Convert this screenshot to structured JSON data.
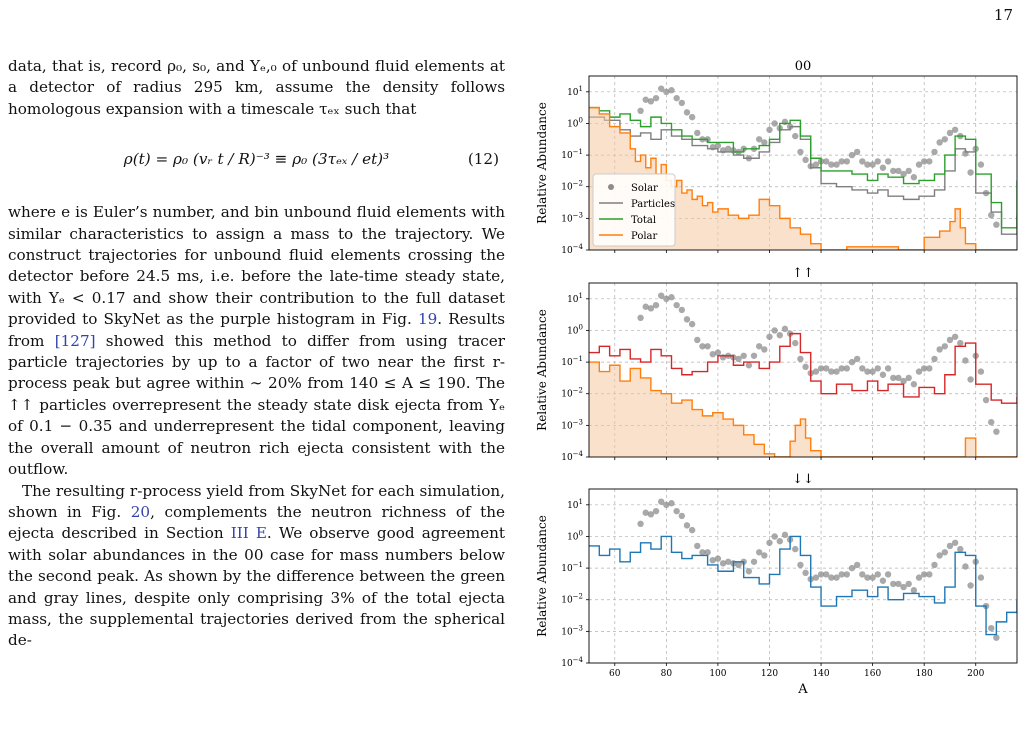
{
  "page": {
    "number": "17"
  },
  "text": {
    "p1_a": "data, that is, record ρ₀, s₀, and Yₑ,₀ of unbound fluid elements at a detector of radius 295 km, assume the density follows homologous expansion with a timescale τₑₓ such that",
    "equation": "ρ(t) = ρ₀ (vᵣ t / R)⁻³ ≡ ρ₀ (3τₑₓ / et)³",
    "equation_number": "(12)",
    "p1_b": "where e is Euler’s number, and bin unbound fluid elements with similar characteristics to assign a mass to the trajectory. We construct trajectories for unbound fluid elements crossing the detector before 24.5 ms, i.e. before the late-time steady state, with Yₑ < 0.17 and show their contribution to the full dataset provided to SkyNet as the purple histogram in Fig.",
    "ref_fig19": "19",
    "p1_c": ". Results from",
    "ref_127": "[127]",
    "p1_d": "showed this method to differ from using tracer particle trajectories by up to a factor of two near the first r-process peak but agree within ∼ 20% from 140 ≤ A ≤ 190. The ↑↑ particles overrepresent the steady state disk ejecta from Yₑ of 0.1 − 0.35 and underrepresent the tidal component, leaving the overall amount of neutron rich ejecta consistent with the outflow.",
    "p2_a": "The resulting r-process yield from SkyNet for each simulation, shown in Fig.",
    "ref_fig20": "20",
    "p2_b": ", complements the neutron richness of the ejecta described in Section",
    "ref_sec": "III E",
    "p2_c": ". We observe good agreement with solar abundances in the 00 case for mass numbers below the second peak. As shown by the difference between the green and gray lines, despite only comprising 3% of the total ejecta mass, the supplemental trajectories derived from the spherical de-"
  },
  "chart_data": [
    {
      "type": "line",
      "title": "00",
      "xlabel": "",
      "ylabel": "Relative Abundance",
      "xlim": [
        50,
        216
      ],
      "ylim_log10": [
        -4,
        1.5
      ],
      "yscale": "log",
      "grid": true,
      "legend_position": "center-left",
      "legend": [
        "Solar",
        "Particles",
        "Total",
        "Polar"
      ],
      "series": [
        {
          "name": "Solar",
          "style": "scatter",
          "color": "#999999",
          "x": [
            70,
            72,
            74,
            76,
            78,
            80,
            82,
            84,
            86,
            88,
            90,
            92,
            94,
            96,
            98,
            100,
            102,
            104,
            106,
            108,
            110,
            112,
            114,
            116,
            118,
            120,
            122,
            124,
            126,
            128,
            130,
            132,
            134,
            136,
            138,
            140,
            142,
            144,
            146,
            148,
            150,
            152,
            154,
            156,
            158,
            160,
            162,
            164,
            166,
            168,
            170,
            172,
            174,
            176,
            178,
            180,
            182,
            184,
            186,
            188,
            190,
            192,
            194,
            196,
            198,
            200,
            202,
            204,
            206,
            208
          ],
          "log10_y": [
            0.4,
            0.75,
            0.7,
            0.8,
            1.1,
            1.0,
            1.05,
            0.8,
            0.65,
            0.35,
            0.2,
            -0.3,
            -0.5,
            -0.5,
            -0.75,
            -0.7,
            -0.85,
            -0.8,
            -0.85,
            -0.9,
            -0.8,
            -1.1,
            -0.8,
            -0.5,
            -0.6,
            -0.2,
            0.0,
            -0.15,
            0.05,
            -0.1,
            -0.4,
            -0.9,
            -1.15,
            -1.35,
            -1.3,
            -1.2,
            -1.2,
            -1.3,
            -1.3,
            -1.2,
            -1.2,
            -1.0,
            -0.9,
            -1.2,
            -1.3,
            -1.3,
            -1.2,
            -1.4,
            -1.2,
            -1.5,
            -1.5,
            -1.6,
            -1.5,
            -1.7,
            -1.3,
            -1.2,
            -1.2,
            -0.9,
            -0.6,
            -0.5,
            -0.3,
            -0.2,
            -0.4,
            -0.95,
            -1.55,
            -0.8,
            -1.3,
            -2.2,
            -2.9,
            -3.2
          ]
        },
        {
          "name": "Particles",
          "color": "#7f7f7f",
          "x": [
            50,
            56,
            62,
            66,
            70,
            74,
            78,
            82,
            86,
            90,
            96,
            100,
            106,
            110,
            116,
            120,
            124,
            128,
            132,
            136,
            140,
            146,
            152,
            158,
            162,
            166,
            172,
            178,
            184,
            188,
            192,
            196,
            200,
            206,
            210,
            216
          ],
          "log10_y": [
            0.2,
            0.1,
            -0.2,
            -0.4,
            -0.3,
            -0.5,
            -0.2,
            -0.4,
            -0.5,
            -0.7,
            -0.8,
            -0.9,
            -1.0,
            -1.1,
            -0.9,
            -0.6,
            -0.2,
            -0.1,
            -0.5,
            -1.4,
            -1.9,
            -2.0,
            -2.1,
            -2.2,
            -2.1,
            -2.3,
            -2.4,
            -2.3,
            -2.1,
            -1.5,
            -0.8,
            -0.9,
            -2.2,
            -2.8,
            -3.5,
            -2.9
          ]
        },
        {
          "name": "Total",
          "color": "#2ca02c",
          "x": [
            50,
            54,
            58,
            62,
            66,
            70,
            74,
            78,
            82,
            86,
            90,
            96,
            100,
            106,
            110,
            116,
            120,
            124,
            128,
            132,
            136,
            140,
            146,
            152,
            158,
            162,
            166,
            172,
            178,
            184,
            188,
            192,
            196,
            200,
            206,
            210,
            216
          ],
          "log10_y": [
            0.5,
            0.4,
            0.2,
            0.3,
            0.1,
            -0.1,
            0.2,
            0.0,
            -0.2,
            -0.4,
            -0.5,
            -0.6,
            -0.6,
            -0.9,
            -0.8,
            -0.7,
            -0.5,
            0.0,
            0.1,
            -0.4,
            -1.1,
            -1.5,
            -1.5,
            -1.6,
            -1.8,
            -1.6,
            -1.7,
            -1.9,
            -1.8,
            -1.6,
            -1.0,
            -0.4,
            -0.5,
            -1.6,
            -2.5,
            -3.3,
            -1.8
          ]
        },
        {
          "name": "Polar",
          "color": "#ff7f0e",
          "x": [
            50,
            54,
            58,
            62,
            66,
            68,
            70,
            72,
            74,
            76,
            78,
            80,
            82,
            84,
            86,
            88,
            90,
            92,
            94,
            96,
            98,
            100,
            104,
            108,
            112,
            116,
            120,
            124,
            128,
            132,
            136,
            140,
            150,
            160,
            170,
            180,
            186,
            190,
            192,
            194,
            196,
            200,
            206,
            212
          ],
          "log10_y": [
            0.5,
            0.3,
            -0.1,
            -0.3,
            -0.8,
            -1.2,
            -1.0,
            -1.4,
            -1.1,
            -1.6,
            -1.3,
            -1.8,
            -2.0,
            -1.8,
            -2.2,
            -2.1,
            -2.4,
            -2.3,
            -2.6,
            -2.5,
            -2.8,
            -2.7,
            -2.9,
            -3.0,
            -2.9,
            -2.4,
            -2.6,
            -3.0,
            -3.3,
            -3.5,
            -3.8,
            -4.0,
            -3.9,
            -3.9,
            -4.0,
            -3.6,
            -3.4,
            -3.1,
            -2.7,
            -3.3,
            -3.8,
            -4.0,
            -4.0,
            -4.0
          ]
        }
      ]
    },
    {
      "type": "line",
      "title": "↑↑",
      "xlabel": "",
      "ylabel": "Relative Abundance",
      "xlim": [
        50,
        216
      ],
      "ylim_log10": [
        -4,
        1.5
      ],
      "yscale": "log",
      "grid": true,
      "series": [
        {
          "name": "Solar",
          "style": "scatter",
          "color": "#999999",
          "x": [
            70,
            72,
            74,
            76,
            78,
            80,
            82,
            84,
            86,
            88,
            90,
            92,
            94,
            96,
            98,
            100,
            102,
            104,
            106,
            108,
            110,
            112,
            114,
            116,
            118,
            120,
            122,
            124,
            126,
            128,
            130,
            132,
            134,
            136,
            138,
            140,
            142,
            144,
            146,
            148,
            150,
            152,
            154,
            156,
            158,
            160,
            162,
            164,
            166,
            168,
            170,
            172,
            174,
            176,
            178,
            180,
            182,
            184,
            186,
            188,
            190,
            192,
            194,
            196,
            198,
            200,
            202,
            204,
            206,
            208
          ],
          "log10_y": [
            0.4,
            0.75,
            0.7,
            0.8,
            1.1,
            1.0,
            1.05,
            0.8,
            0.65,
            0.35,
            0.2,
            -0.3,
            -0.5,
            -0.5,
            -0.75,
            -0.7,
            -0.85,
            -0.8,
            -0.85,
            -0.9,
            -0.8,
            -1.1,
            -0.8,
            -0.5,
            -0.6,
            -0.2,
            0.0,
            -0.15,
            0.05,
            -0.1,
            -0.4,
            -0.9,
            -1.15,
            -1.35,
            -1.3,
            -1.2,
            -1.2,
            -1.3,
            -1.3,
            -1.2,
            -1.2,
            -1.0,
            -0.9,
            -1.2,
            -1.3,
            -1.3,
            -1.2,
            -1.4,
            -1.2,
            -1.5,
            -1.5,
            -1.6,
            -1.5,
            -1.7,
            -1.3,
            -1.2,
            -1.2,
            -0.9,
            -0.6,
            -0.5,
            -0.3,
            -0.2,
            -0.4,
            -0.95,
            -1.55,
            -0.8,
            -1.3,
            -2.2,
            -2.9,
            -3.2
          ]
        },
        {
          "name": "red",
          "color": "#d62728",
          "x": [
            50,
            54,
            58,
            62,
            66,
            70,
            74,
            78,
            82,
            86,
            90,
            96,
            100,
            106,
            110,
            116,
            120,
            124,
            128,
            132,
            136,
            140,
            146,
            152,
            158,
            162,
            166,
            172,
            178,
            184,
            188,
            192,
            196,
            200,
            206,
            210,
            216
          ],
          "log10_y": [
            -0.7,
            -0.5,
            -0.8,
            -0.6,
            -0.9,
            -1.0,
            -0.6,
            -0.8,
            -1.2,
            -1.4,
            -1.3,
            -1.0,
            -0.8,
            -1.1,
            -1.0,
            -1.2,
            -1.0,
            -0.5,
            -0.1,
            -0.7,
            -1.6,
            -2.0,
            -1.7,
            -1.9,
            -1.6,
            -1.9,
            -1.7,
            -2.1,
            -1.8,
            -2.0,
            -1.4,
            -0.5,
            -0.4,
            -1.7,
            -2.2,
            -2.3,
            -2.1
          ]
        },
        {
          "name": "orange",
          "color": "#ff7f0e",
          "x": [
            50,
            54,
            58,
            62,
            66,
            70,
            74,
            78,
            82,
            86,
            90,
            94,
            98,
            102,
            106,
            110,
            114,
            118,
            122,
            126,
            128,
            130,
            132,
            134,
            136,
            140,
            150,
            170,
            190,
            196,
            200,
            208,
            216
          ],
          "log10_y": [
            -1.0,
            -1.3,
            -1.1,
            -1.6,
            -1.2,
            -1.5,
            -1.9,
            -2.0,
            -2.3,
            -2.2,
            -2.5,
            -2.7,
            -2.6,
            -2.8,
            -3.0,
            -3.3,
            -3.6,
            -3.9,
            -4.0,
            -4.0,
            -3.5,
            -3.0,
            -2.8,
            -3.4,
            -3.8,
            -4.0,
            -4.0,
            -4.0,
            -4.0,
            -3.4,
            -4.0,
            -4.0,
            -4.0
          ]
        }
      ]
    },
    {
      "type": "line",
      "title": "↓↓",
      "xlabel": "A",
      "ylabel": "Relative Abundance",
      "xlim": [
        50,
        216
      ],
      "ylim_log10": [
        -4,
        1.5
      ],
      "yscale": "log",
      "xticks": [
        "60",
        "80",
        "100",
        "120",
        "140",
        "160",
        "180",
        "200"
      ],
      "grid": true,
      "series": [
        {
          "name": "Solar",
          "style": "scatter",
          "color": "#999999",
          "x": [
            70,
            72,
            74,
            76,
            78,
            80,
            82,
            84,
            86,
            88,
            90,
            92,
            94,
            96,
            98,
            100,
            102,
            104,
            106,
            108,
            110,
            112,
            114,
            116,
            118,
            120,
            122,
            124,
            126,
            128,
            130,
            132,
            134,
            136,
            138,
            140,
            142,
            144,
            146,
            148,
            150,
            152,
            154,
            156,
            158,
            160,
            162,
            164,
            166,
            168,
            170,
            172,
            174,
            176,
            178,
            180,
            182,
            184,
            186,
            188,
            190,
            192,
            194,
            196,
            198,
            200,
            202,
            204,
            206,
            208
          ],
          "log10_y": [
            0.4,
            0.75,
            0.7,
            0.8,
            1.1,
            1.0,
            1.05,
            0.8,
            0.65,
            0.35,
            0.2,
            -0.3,
            -0.5,
            -0.5,
            -0.75,
            -0.7,
            -0.85,
            -0.8,
            -0.85,
            -0.9,
            -0.8,
            -1.1,
            -0.8,
            -0.5,
            -0.6,
            -0.2,
            0.0,
            -0.15,
            0.05,
            -0.1,
            -0.4,
            -0.9,
            -1.15,
            -1.35,
            -1.3,
            -1.2,
            -1.2,
            -1.3,
            -1.3,
            -1.2,
            -1.2,
            -1.0,
            -0.9,
            -1.2,
            -1.3,
            -1.3,
            -1.2,
            -1.4,
            -1.2,
            -1.5,
            -1.5,
            -1.6,
            -1.5,
            -1.7,
            -1.3,
            -1.2,
            -1.2,
            -0.9,
            -0.6,
            -0.5,
            -0.3,
            -0.2,
            -0.4,
            -0.95,
            -1.55,
            -0.8,
            -1.3,
            -2.2,
            -2.9,
            -3.2
          ]
        },
        {
          "name": "blue",
          "color": "#1f77b4",
          "x": [
            50,
            54,
            58,
            62,
            66,
            70,
            74,
            78,
            82,
            86,
            90,
            96,
            100,
            106,
            110,
            116,
            120,
            124,
            128,
            132,
            136,
            140,
            146,
            152,
            158,
            162,
            166,
            172,
            178,
            184,
            188,
            192,
            196,
            200,
            204,
            208,
            212,
            216
          ],
          "log10_y": [
            -0.3,
            -0.6,
            -0.4,
            -0.8,
            -0.5,
            -0.2,
            -0.4,
            0.0,
            -0.5,
            -0.7,
            -0.6,
            -0.9,
            -1.1,
            -0.8,
            -1.3,
            -1.5,
            -1.2,
            -0.4,
            0.0,
            -0.6,
            -1.6,
            -2.2,
            -1.9,
            -1.7,
            -1.9,
            -1.6,
            -2.0,
            -1.8,
            -1.9,
            -2.1,
            -1.6,
            -0.5,
            -0.6,
            -2.2,
            -3.1,
            -2.7,
            -2.4,
            -2.0
          ]
        }
      ]
    }
  ]
}
